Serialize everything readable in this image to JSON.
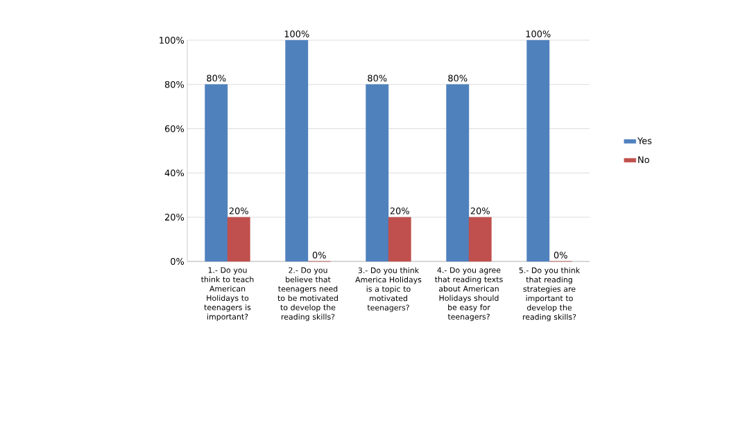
{
  "chart_data": {
    "type": "bar",
    "categories": [
      "1.- Do you think to teach American Holidays to teenagers is important?",
      "2.- Do you believe that teenagers need to be motivated to develop the reading skills?",
      "3.- Do you think America Holidays is a topic to motivated teenagers?",
      "4.- Do you agree that reading texts about American Holidays should be easy for teenagers?",
      "5.- Do you think that reading strategies are important to develop the reading skills?"
    ],
    "series": [
      {
        "name": "Yes",
        "color": "#4f81bd",
        "values": [
          80,
          100,
          80,
          80,
          100
        ],
        "value_labels": [
          "80%",
          "100%",
          "80%",
          "80%",
          "100%"
        ]
      },
      {
        "name": "No",
        "color": "#c0504d",
        "values": [
          20,
          0,
          20,
          20,
          0
        ],
        "value_labels": [
          "20%",
          "0%",
          "20%",
          "20%",
          "0%"
        ]
      }
    ],
    "ylim": [
      0,
      100
    ],
    "yticks": [
      {
        "value": 0,
        "label": "0%"
      },
      {
        "value": 20,
        "label": "20%"
      },
      {
        "value": 40,
        "label": "40%"
      },
      {
        "value": 60,
        "label": "60%"
      },
      {
        "value": 80,
        "label": "80%"
      },
      {
        "value": 100,
        "label": "100%"
      }
    ],
    "grid": "y",
    "legend": "right"
  }
}
